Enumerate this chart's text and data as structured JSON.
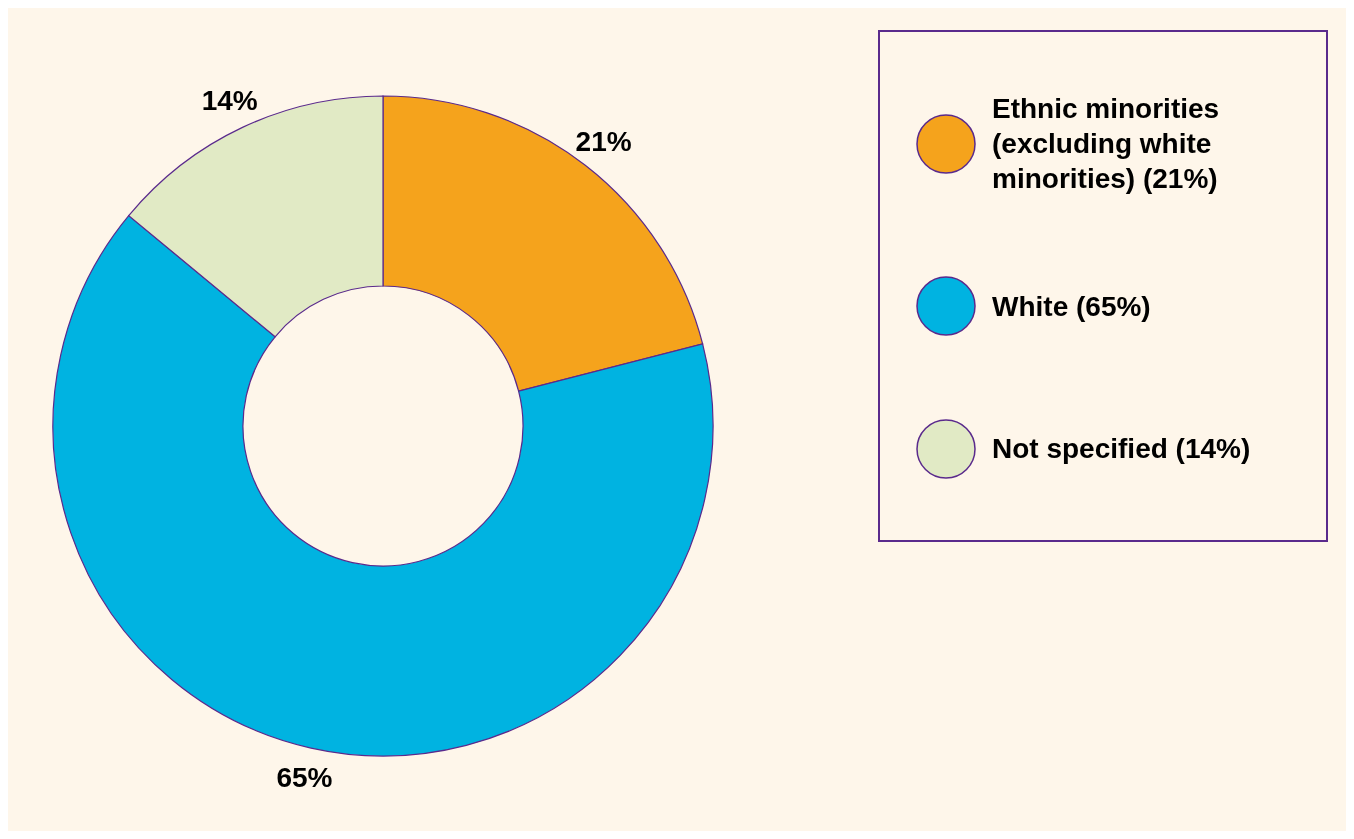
{
  "chart_data": {
    "type": "donut",
    "categories": [
      "Ethnic minorities (excluding white minorities) (21%)",
      "White (65%)",
      "Not specified (14%)"
    ],
    "values": [
      21,
      65,
      14
    ],
    "value_labels": [
      "21%",
      "65%",
      "14%"
    ],
    "colors": [
      "#f5a31c",
      "#00b3e1",
      "#e1eac5"
    ],
    "legend": "right"
  }
}
